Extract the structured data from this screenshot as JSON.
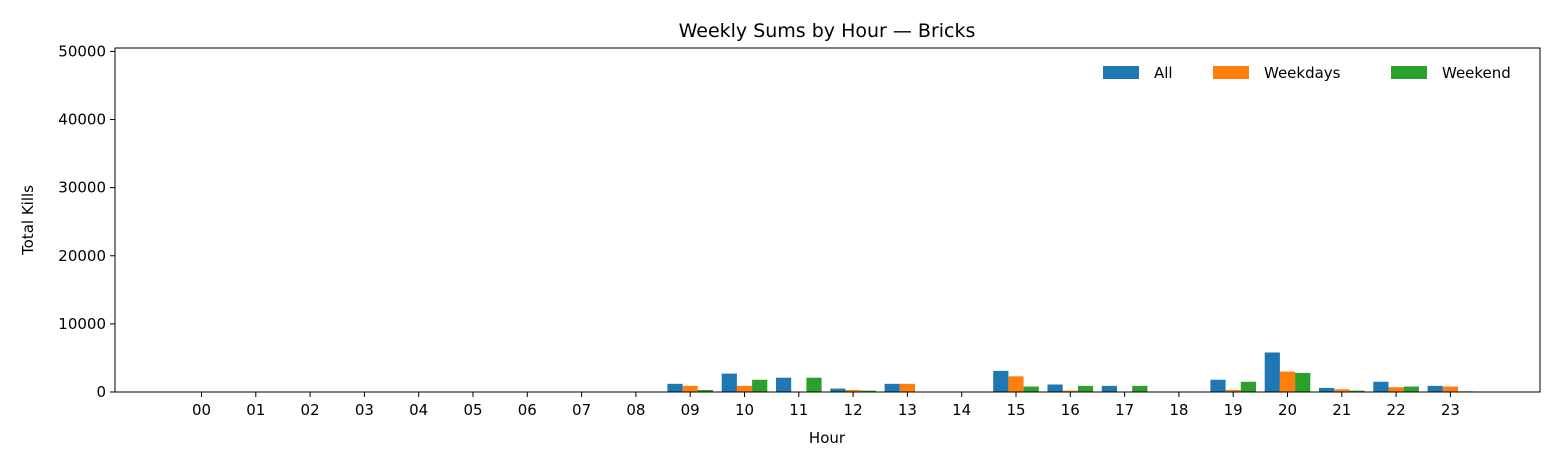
{
  "chart_data": {
    "type": "bar",
    "title": "Weekly Sums by Hour — Bricks",
    "xlabel": "Hour",
    "ylabel": "Total Kills",
    "ylim": [
      0,
      50500
    ],
    "yticks": [
      "0",
      "10000",
      "20000",
      "30000",
      "40000",
      "50000"
    ],
    "ytick_values": [
      0,
      10000,
      20000,
      30000,
      40000,
      50000
    ],
    "grid": false,
    "legend_position": "top-right",
    "categories": [
      "00",
      "01",
      "02",
      "03",
      "04",
      "05",
      "06",
      "07",
      "08",
      "09",
      "10",
      "11",
      "12",
      "13",
      "14",
      "15",
      "16",
      "17",
      "18",
      "19",
      "20",
      "21",
      "22",
      "23"
    ],
    "series": [
      {
        "name": "All",
        "color": "#1f77b4",
        "values": [
          0,
          0,
          0,
          0,
          0,
          0,
          0,
          0,
          0,
          1200,
          2700,
          2100,
          500,
          1200,
          0,
          3100,
          1100,
          900,
          0,
          1800,
          5800,
          600,
          1500,
          900
        ]
      },
      {
        "name": "Weekdays",
        "color": "#ff7f0e",
        "values": [
          0,
          0,
          0,
          0,
          0,
          0,
          0,
          0,
          0,
          900,
          900,
          0,
          300,
          1200,
          0,
          2300,
          200,
          0,
          0,
          300,
          3000,
          400,
          700,
          800
        ]
      },
      {
        "name": "Weekend",
        "color": "#2ca02c",
        "values": [
          0,
          0,
          0,
          0,
          0,
          0,
          0,
          0,
          0,
          300,
          1800,
          2100,
          200,
          0,
          0,
          800,
          900,
          900,
          0,
          1500,
          2800,
          200,
          800,
          100
        ]
      }
    ]
  }
}
